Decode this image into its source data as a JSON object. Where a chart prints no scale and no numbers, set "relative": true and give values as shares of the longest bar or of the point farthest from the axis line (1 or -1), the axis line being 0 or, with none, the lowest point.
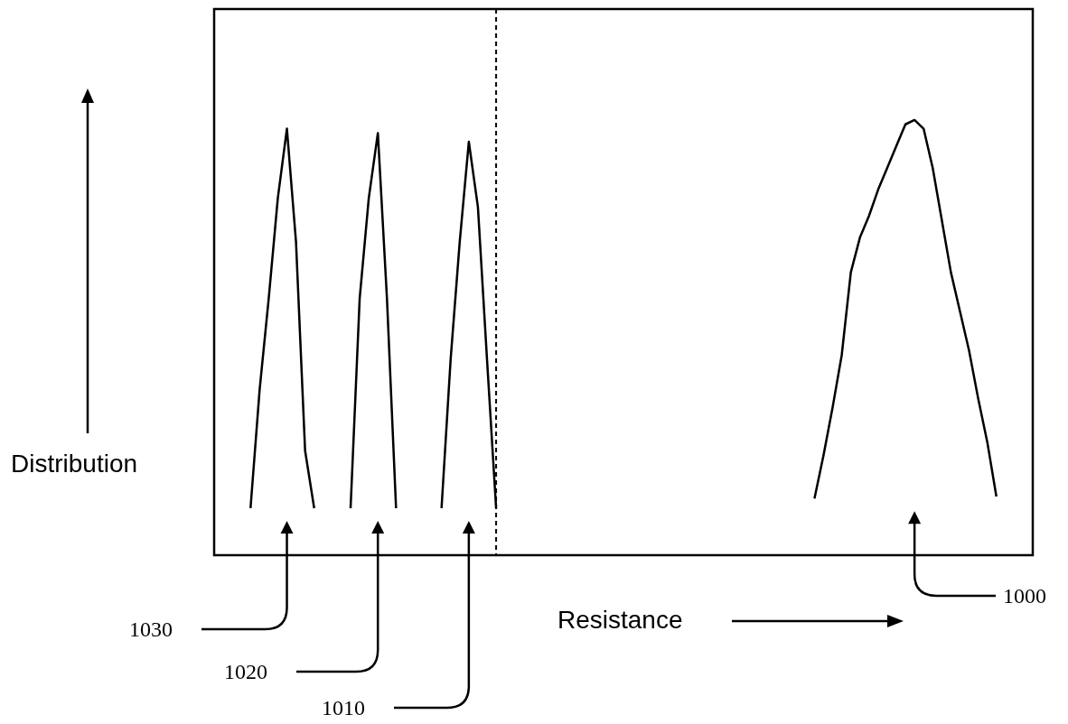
{
  "chart_data": {
    "type": "line",
    "relative": true,
    "xlabel": "Resistance",
    "ylabel": "Distribution",
    "categories": [
      null,
      null,
      null,
      null,
      null,
      null,
      null,
      null,
      null,
      null,
      null,
      null,
      null,
      null,
      null,
      null,
      null,
      null,
      null,
      null,
      null,
      null,
      null,
      null,
      null,
      null,
      null,
      null,
      null,
      null,
      null,
      null,
      null,
      null,
      null,
      null,
      null,
      null,
      null,
      null,
      null,
      null,
      null,
      null,
      null,
      null,
      null,
      null,
      null,
      null,
      null,
      null,
      null,
      null,
      null,
      null,
      null,
      null,
      null,
      null,
      null,
      null,
      null,
      null,
      null,
      null,
      null,
      null,
      null,
      null,
      null,
      null,
      null,
      null,
      null,
      null,
      null,
      null,
      null,
      null,
      null,
      null,
      null,
      null,
      null,
      null,
      null,
      null,
      null,
      null,
      null
    ],
    "series": [
      {
        "color": "#000000",
        "values": [
          null,
          null,
          null,
          null,
          0.108,
          0.38,
          0.59,
          0.82,
          0.98,
          0.72,
          0.24,
          0.108,
          null,
          null,
          null,
          null,
          null,
          null,
          null,
          null,
          null,
          null,
          null,
          null,
          null,
          null,
          null,
          null,
          null,
          null,
          null,
          null,
          null,
          null,
          null,
          null,
          null,
          null,
          null,
          null,
          null,
          null,
          null,
          null,
          null,
          null,
          null,
          null,
          null,
          null,
          null,
          null,
          null,
          null,
          null,
          null,
          null,
          null,
          null,
          null,
          null,
          null,
          null,
          null,
          null,
          null,
          null,
          null,
          null,
          null,
          null,
          null,
          null,
          null,
          null,
          null,
          null,
          null,
          null,
          null,
          null,
          null,
          null,
          null,
          null,
          null,
          null,
          null,
          null,
          null,
          null
        ]
      },
      {
        "color": "#000000",
        "values": [
          null,
          null,
          null,
          null,
          null,
          null,
          null,
          null,
          null,
          null,
          null,
          null,
          null,
          null,
          null,
          0.108,
          0.59,
          0.82,
          0.97,
          0.59,
          0.108,
          null,
          null,
          null,
          null,
          null,
          null,
          null,
          null,
          null,
          null,
          null,
          null,
          null,
          null,
          null,
          null,
          null,
          null,
          null,
          null,
          null,
          null,
          null,
          null,
          null,
          null,
          null,
          null,
          null,
          null,
          null,
          null,
          null,
          null,
          null,
          null,
          null,
          null,
          null,
          null,
          null,
          null,
          null,
          null,
          null,
          null,
          null,
          null,
          null,
          null,
          null,
          null,
          null,
          null,
          null,
          null,
          null,
          null,
          null,
          null,
          null,
          null,
          null,
          null,
          null,
          null,
          null,
          null,
          null,
          null
        ]
      },
      {
        "color": "#000000",
        "values": [
          null,
          null,
          null,
          null,
          null,
          null,
          null,
          null,
          null,
          null,
          null,
          null,
          null,
          null,
          null,
          null,
          null,
          null,
          null,
          null,
          null,
          null,
          null,
          null,
          null,
          0.108,
          0.45,
          0.72,
          0.95,
          0.8,
          0.45,
          0.108,
          null,
          null,
          null,
          null,
          null,
          null,
          null,
          null,
          null,
          null,
          null,
          null,
          null,
          null,
          null,
          null,
          null,
          null,
          null,
          null,
          null,
          null,
          null,
          null,
          null,
          null,
          null,
          null,
          null,
          null,
          null,
          null,
          null,
          null,
          null,
          null,
          null,
          null,
          null,
          null,
          null,
          null,
          null,
          null,
          null,
          null,
          null,
          null,
          null,
          null,
          null,
          null,
          null,
          null,
          null,
          null,
          null,
          null,
          null
        ]
      },
      {
        "color": "#000000",
        "values": [
          null,
          null,
          null,
          null,
          null,
          null,
          null,
          null,
          null,
          null,
          null,
          null,
          null,
          null,
          null,
          null,
          null,
          null,
          null,
          null,
          null,
          null,
          null,
          null,
          null,
          null,
          null,
          null,
          null,
          null,
          null,
          null,
          null,
          null,
          null,
          null,
          null,
          null,
          null,
          null,
          null,
          null,
          null,
          null,
          null,
          null,
          null,
          null,
          null,
          null,
          null,
          null,
          null,
          null,
          null,
          null,
          null,
          null,
          null,
          null,
          null,
          null,
          null,
          null,
          null,
          null,
          0.13,
          0.23,
          0.34,
          0.46,
          0.65,
          0.73,
          0.78,
          0.84,
          0.89,
          0.94,
          0.99,
          1.0,
          0.98,
          0.89,
          0.77,
          0.65,
          0.56,
          0.47,
          0.36,
          0.26,
          0.135,
          null,
          null,
          null,
          null
        ]
      }
    ],
    "annotations": [
      "1030",
      "1020",
      "1010",
      "1000"
    ]
  }
}
